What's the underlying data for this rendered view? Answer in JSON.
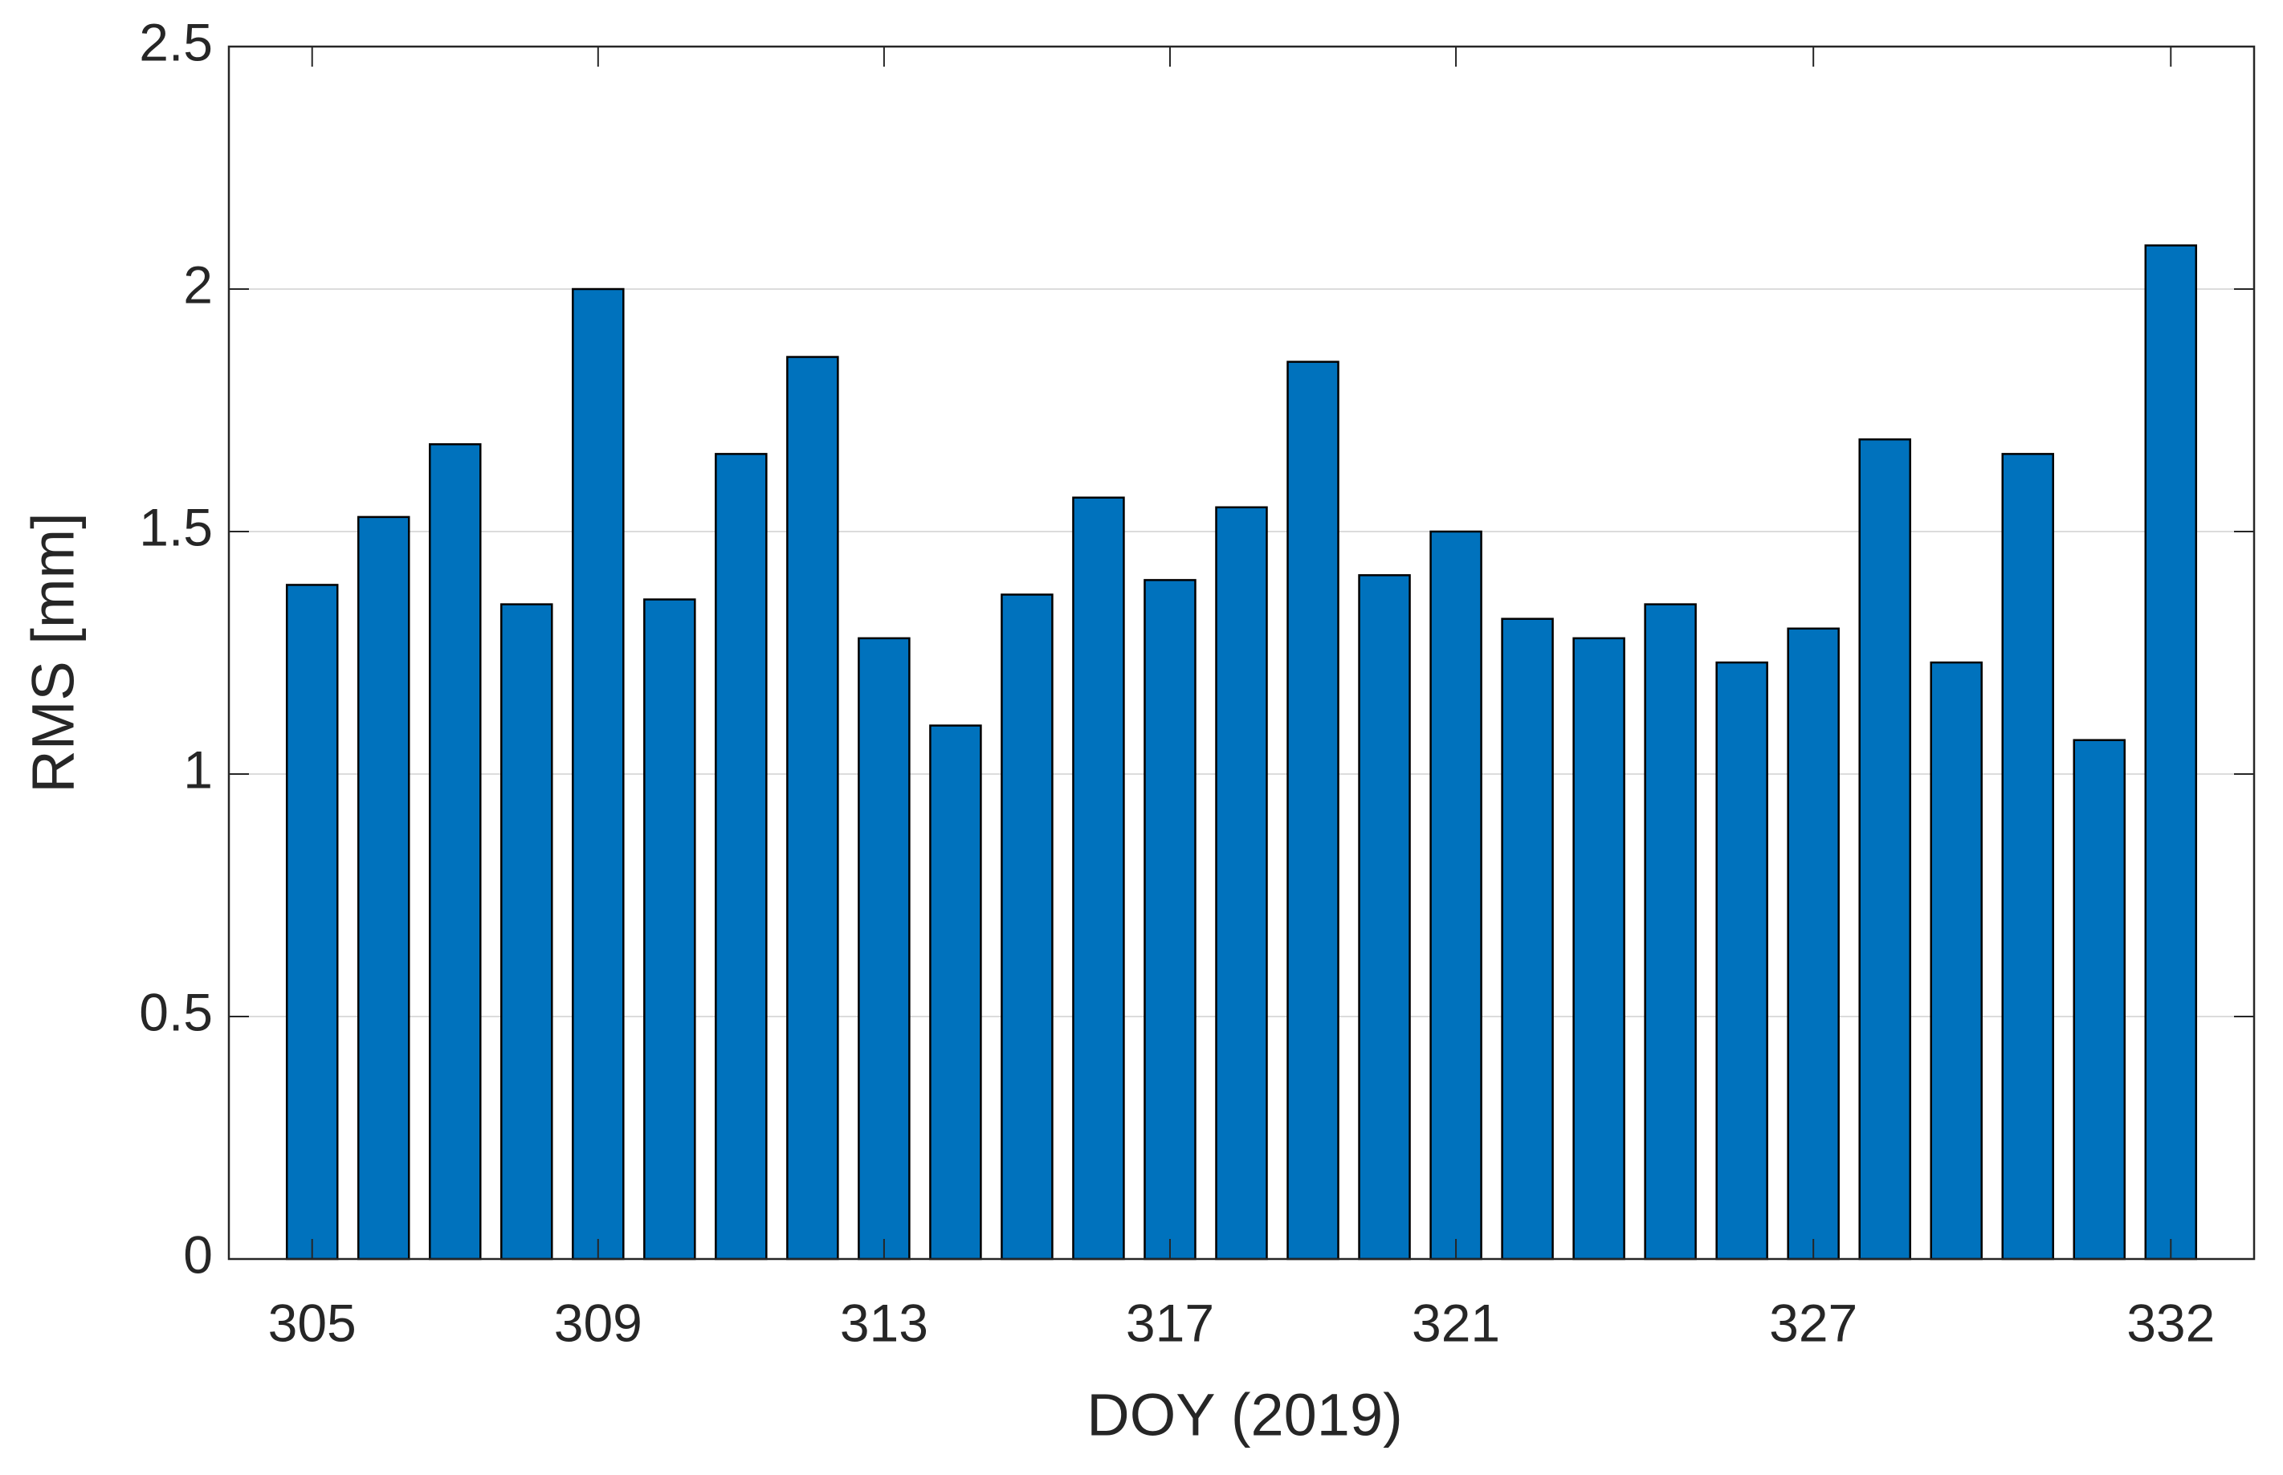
{
  "chart_data": {
    "type": "bar",
    "xlabel": "DOY (2019)",
    "ylabel": "RMS [mm]",
    "categories": [
      "305",
      null,
      null,
      null,
      "309",
      null,
      null,
      null,
      "313",
      null,
      null,
      null,
      "317",
      null,
      null,
      null,
      "321",
      null,
      null,
      null,
      null,
      "327",
      null,
      null,
      null,
      null,
      "332"
    ],
    "values": [
      1.39,
      1.53,
      1.68,
      1.35,
      2.0,
      1.36,
      1.66,
      1.86,
      1.28,
      1.1,
      1.37,
      1.57,
      1.4,
      1.55,
      1.85,
      1.41,
      1.5,
      1.32,
      1.28,
      1.35,
      1.23,
      1.3,
      1.69,
      1.23,
      1.66,
      1.07,
      2.09
    ],
    "color": "#0072bd",
    "ylim": [
      0,
      2.5
    ],
    "yticks": [
      0,
      0.5,
      1,
      1.5,
      2,
      2.5
    ],
    "grid": true
  }
}
